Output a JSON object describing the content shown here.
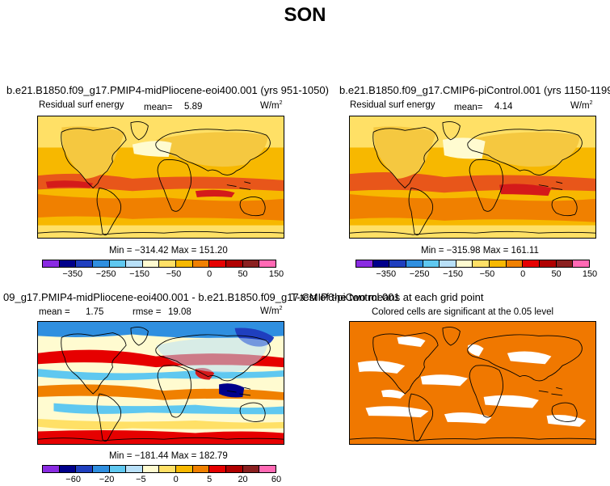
{
  "season": "SON",
  "panels": [
    {
      "title": "b.e21.B1850.f09_g17.PMIP4-midPliocene-eoi400.001 (yrs 951-1050)",
      "variable": "Residual surf energy",
      "mean_label": "mean=",
      "mean_value": "5.89",
      "units": "W/m",
      "units_exp": "2",
      "min_max": "Min = −314.42 Max = 151.20"
    },
    {
      "title": "b.e21.B1850.f09_g17.CMIP6-piControl.001 (yrs 1150-1199)",
      "variable": "Residual surf energy",
      "mean_label": "mean=",
      "mean_value": "4.14",
      "units": "W/m",
      "units_exp": "2",
      "min_max": "Min = −315.98 Max = 161.11"
    },
    {
      "title": "09_g17.PMIP4-midPliocene-eoi400.001 - b.e21.B1850.f09_g17.CMIP6-piControl.001",
      "mean_label": "mean =",
      "mean_value": "1.75",
      "rmse_label": "rmse =",
      "rmse_value": "19.08",
      "units": "W/m",
      "units_exp": "2",
      "min_max": "Min = −181.44 Max = 182.79"
    },
    {
      "title": "T-test of the two means at each grid point",
      "subtitle": "Colored cells are significant at the 0.05 level"
    }
  ],
  "colorbar_abs": {
    "colors": [
      "#8a2be2",
      "#00008b",
      "#1f3fbf",
      "#2f8fe0",
      "#5fc8f0",
      "#b8e0f8",
      "#fffbd0",
      "#ffe066",
      "#f7b800",
      "#f08000",
      "#e60000",
      "#b00000",
      "#8b2020",
      "#ff69b4"
    ],
    "ticks": [
      "−350",
      "−250",
      "−150",
      "−50",
      "0",
      "50",
      "150"
    ]
  },
  "colorbar_diff": {
    "colors": [
      "#8a2be2",
      "#00008b",
      "#1f3fbf",
      "#2f8fe0",
      "#5fc8f0",
      "#b8e0f8",
      "#fffbd0",
      "#ffe066",
      "#f7b800",
      "#f08000",
      "#e60000",
      "#b00000",
      "#8b2020",
      "#ff69b4"
    ],
    "ticks": [
      "−60",
      "−20",
      "−5",
      "0",
      "5",
      "20",
      "60"
    ]
  },
  "map_colors": {
    "ocean_warm": "#f7a81a",
    "land": "#f5c840",
    "tropics": "#e8561a",
    "hot": "#d41a1a",
    "cold": "#b8e0f8",
    "ttest": "#f07800",
    "coast": "#000000"
  }
}
